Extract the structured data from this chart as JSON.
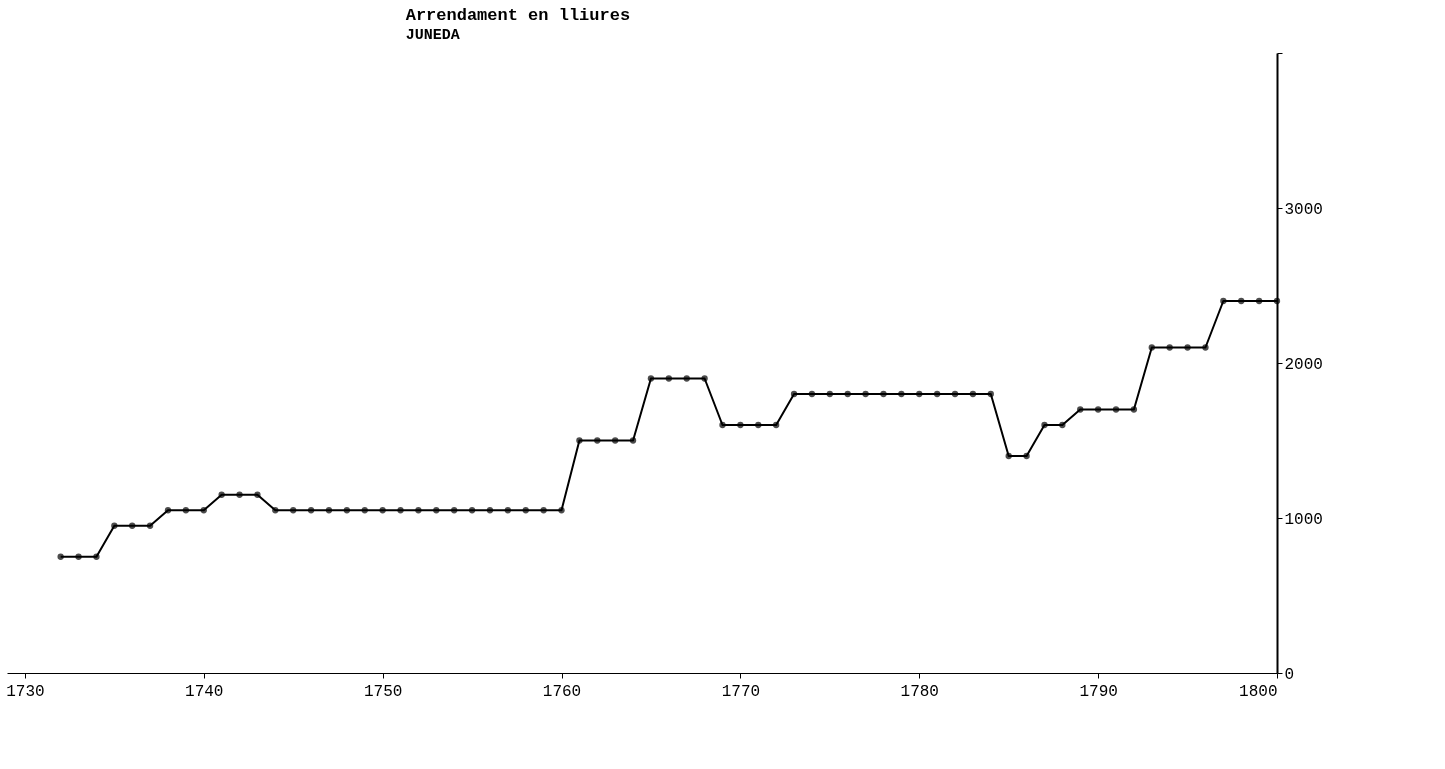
{
  "chart_data": {
    "type": "line",
    "title": "Arrendament en lliures",
    "subtitle": "JUNEDA",
    "x": [
      1732,
      1733,
      1734,
      1735,
      1736,
      1737,
      1738,
      1739,
      1740,
      1741,
      1742,
      1743,
      1744,
      1745,
      1746,
      1747,
      1748,
      1749,
      1750,
      1751,
      1752,
      1753,
      1754,
      1755,
      1756,
      1757,
      1758,
      1759,
      1760,
      1761,
      1762,
      1763,
      1764,
      1765,
      1766,
      1767,
      1768,
      1769,
      1770,
      1771,
      1772,
      1773,
      1774,
      1775,
      1776,
      1777,
      1778,
      1779,
      1780,
      1781,
      1782,
      1783,
      1784,
      1785,
      1786,
      1787,
      1788,
      1789,
      1790,
      1791,
      1792,
      1793,
      1794,
      1795,
      1796,
      1797,
      1798,
      1799,
      1800
    ],
    "series": [
      {
        "color": "#000000",
        "values": [
          750,
          750,
          750,
          950,
          950,
          950,
          1050,
          1050,
          1050,
          1150,
          1150,
          1150,
          1050,
          1050,
          1050,
          1050,
          1050,
          1050,
          1050,
          1050,
          1050,
          1050,
          1050,
          1050,
          1050,
          1050,
          1050,
          1050,
          1050,
          1500,
          1500,
          1500,
          1500,
          1900,
          1900,
          1900,
          1900,
          1600,
          1600,
          1600,
          1600,
          1800,
          1800,
          1800,
          1800,
          1800,
          1800,
          1800,
          1800,
          1800,
          1800,
          1800,
          1800,
          1400,
          1400,
          1600,
          1600,
          1700,
          1700,
          1700,
          1700,
          2100,
          2100,
          2100,
          2100,
          2400,
          2400,
          2400,
          2400
        ]
      }
    ],
    "xlim": [
      1729,
      1800
    ],
    "xticks": [
      1730,
      1740,
      1750,
      1760,
      1770,
      1780,
      1790,
      1800
    ],
    "ylim": [
      0,
      4000
    ],
    "yticks": [
      0,
      1000,
      2000,
      3000,
      {
        "value": 4000,
        "label": null
      }
    ],
    "grid": false,
    "legend": false,
    "marker": "circle",
    "line_style": "solid"
  }
}
